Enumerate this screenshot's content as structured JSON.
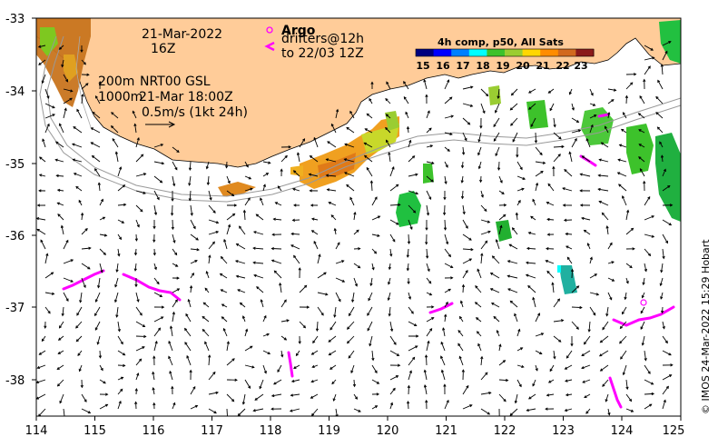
{
  "map": {
    "x_ticks": [
      "114",
      "115",
      "116",
      "117",
      "118",
      "119",
      "120",
      "121",
      "122",
      "123",
      "124",
      "125"
    ],
    "y_ticks": [
      "-33",
      "-34",
      "-35",
      "-36",
      "-37",
      "-38"
    ],
    "date": "21-Mar-2022",
    "hour": "16Z",
    "argo_label": "Argo",
    "drifters_label": "drifters@12h",
    "drifters_to": "to 22/03 12Z",
    "isobath_200": "200m",
    "isobath_1000": "1000m",
    "altimetry_label": "NRT00 GSL",
    "altimetry_time": "21-Mar 18:00Z",
    "vector_scale": "0.5m/s (1kt 24h)",
    "colorbar_title": "4h comp, p50, All Sats",
    "colorbar_ticks": [
      "15",
      "16",
      "17",
      "18",
      "19",
      "20",
      "21",
      "22",
      "23"
    ],
    "colorbar_colors": [
      "#00007f",
      "#0000ff",
      "#0080ff",
      "#00ffff",
      "#3dc22b",
      "#9acd32",
      "#ffd700",
      "#ff8c00",
      "#d2691e",
      "#8b1a1a"
    ],
    "land_color": "#ffcc99",
    "argo_color": "#ff00ff",
    "credit": "© IMOS 24-Mar-2022 15:29 Hobart"
  }
}
